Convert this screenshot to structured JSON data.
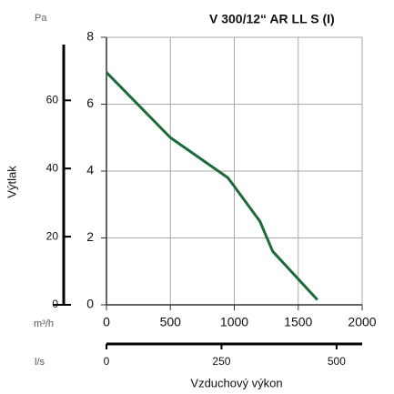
{
  "chart_data": {
    "type": "line",
    "title": "V 300/12“ AR LL S (I)",
    "y_label": "Výtlak",
    "x_label": "Vzduchový výkon",
    "x_unit": "m³/h",
    "x2_unit": "l/s",
    "y2_unit": "Pa",
    "x": [
      0,
      500,
      950,
      1200,
      1300,
      1650
    ],
    "values": [
      6.95,
      5.0,
      3.8,
      2.5,
      1.6,
      0.15
    ],
    "color": "#1e6b3a",
    "xlim": [
      0,
      2000
    ],
    "xticks": [
      0,
      500,
      1000,
      1500,
      2000
    ],
    "ylim": [
      0,
      8
    ],
    "yticks": [
      0,
      2,
      4,
      6,
      8
    ],
    "x2lim": [
      0,
      555.6
    ],
    "x2ticks": [
      0,
      250,
      500
    ],
    "y2lim": [
      0,
      78.5
    ],
    "y2ticks": [
      0,
      20,
      40,
      60
    ],
    "grid": true
  }
}
